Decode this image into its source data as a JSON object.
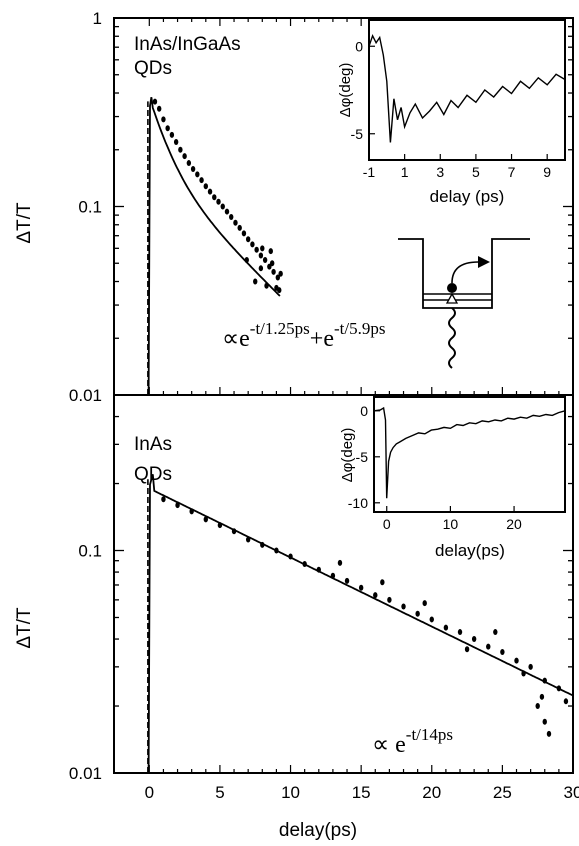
{
  "chart_data": [
    {
      "type": "scatter",
      "panel": "top",
      "scale": "log",
      "xlim": [
        -2.5,
        30
      ],
      "ylim": [
        0.01,
        1
      ],
      "ylabel": "ΔT/T",
      "y_ticks": [
        {
          "v": 1,
          "label": "1"
        },
        {
          "v": 0.1,
          "label": "0.1"
        },
        {
          "v": 0.01,
          "label": "0.01"
        }
      ],
      "sample_label": [
        "InAs/InGaAs",
        "QDs"
      ],
      "fit_text": {
        "prefix": "∝e",
        "exp1": "-t/1.25ps",
        "plus": "+e",
        "exp2": "-t/5.9ps"
      },
      "fit": {
        "peak_x": 0.15,
        "peak_y": 0.38,
        "a1": 0.22,
        "tau1_ps": 1.25,
        "a2": 0.16,
        "tau2_ps": 5.9,
        "x_end": 9.3
      },
      "series": [
        {
          "values": [
            [
              0.4,
              0.36
            ],
            [
              0.7,
              0.33
            ],
            [
              1.0,
              0.29
            ],
            [
              1.3,
              0.26
            ],
            [
              1.6,
              0.24
            ],
            [
              1.9,
              0.22
            ],
            [
              2.2,
              0.2
            ],
            [
              2.5,
              0.185
            ],
            [
              2.8,
              0.17
            ],
            [
              3.1,
              0.158
            ],
            [
              3.4,
              0.148
            ],
            [
              3.7,
              0.138
            ],
            [
              4.0,
              0.128
            ],
            [
              4.3,
              0.12
            ],
            [
              4.6,
              0.112
            ],
            [
              4.9,
              0.106
            ],
            [
              5.2,
              0.1
            ],
            [
              5.5,
              0.094
            ],
            [
              5.8,
              0.088
            ],
            [
              6.1,
              0.082
            ],
            [
              6.4,
              0.077
            ],
            [
              6.7,
              0.072
            ],
            [
              7.0,
              0.067
            ],
            [
              7.3,
              0.063
            ],
            [
              7.6,
              0.059
            ],
            [
              7.9,
              0.055
            ],
            [
              8.2,
              0.052
            ],
            [
              8.5,
              0.048
            ],
            [
              8.8,
              0.045
            ],
            [
              9.1,
              0.042
            ],
            [
              7.5,
              0.04
            ],
            [
              7.9,
              0.047
            ],
            [
              8.3,
              0.038
            ],
            [
              8.7,
              0.05
            ],
            [
              9.0,
              0.037
            ],
            [
              9.3,
              0.044
            ],
            [
              6.9,
              0.052
            ],
            [
              8.0,
              0.06
            ],
            [
              8.6,
              0.058
            ],
            [
              9.2,
              0.036
            ]
          ]
        }
      ],
      "inset": {
        "ylabel": "Δφ(deg)",
        "xlabel": "delay (ps)",
        "xlim": [
          -1,
          10
        ],
        "ylim": [
          -6.5,
          1.5
        ],
        "x_ticks": [
          -1,
          1,
          3,
          5,
          7,
          9
        ],
        "y_ticks": [
          0,
          -5
        ],
        "trace": [
          [
            -1,
            0
          ],
          [
            -0.8,
            0.6
          ],
          [
            -0.6,
            0.2
          ],
          [
            -0.4,
            0.5
          ],
          [
            -0.2,
            -0.5
          ],
          [
            0,
            -2
          ],
          [
            0.2,
            -5.5
          ],
          [
            0.4,
            -3
          ],
          [
            0.6,
            -4.2
          ],
          [
            0.8,
            -3.5
          ],
          [
            1,
            -4.6
          ],
          [
            1.3,
            -3.8
          ],
          [
            1.6,
            -3.3
          ],
          [
            2,
            -4.1
          ],
          [
            2.4,
            -3.7
          ],
          [
            2.8,
            -3.2
          ],
          [
            3.2,
            -3.9
          ],
          [
            3.6,
            -3.1
          ],
          [
            4,
            -3.5
          ],
          [
            4.5,
            -2.8
          ],
          [
            5,
            -3.2
          ],
          [
            5.5,
            -2.5
          ],
          [
            6,
            -2.9
          ],
          [
            6.5,
            -2.3
          ],
          [
            7,
            -2.7
          ],
          [
            7.5,
            -2.0
          ],
          [
            8,
            -2.4
          ],
          [
            8.5,
            -1.8
          ],
          [
            9,
            -2.2
          ],
          [
            9.5,
            -1.6
          ],
          [
            10,
            -1.9
          ]
        ]
      },
      "energy_diagram": true
    },
    {
      "type": "scatter",
      "panel": "bottom",
      "scale": "log",
      "xlim": [
        -2.5,
        30
      ],
      "ylim": [
        0.01,
        0.5
      ],
      "xlabel": "delay(ps)",
      "ylabel": "ΔT/T",
      "x_ticks": [
        0,
        5,
        10,
        15,
        20,
        25,
        30
      ],
      "y_ticks": [
        {
          "v": 0.1,
          "label": "0.1"
        },
        {
          "v": 0.01,
          "label": "0.01"
        }
      ],
      "sample_label": [
        "InAs",
        "QDs"
      ],
      "fit_text": {
        "prefix": "∝ e",
        "exp1": "-t/14ps"
      },
      "fit": {
        "peak_x": 0.25,
        "peak_y": 0.22,
        "a": 0.19,
        "tau_ps": 14,
        "x_end": 30
      },
      "series": [
        {
          "values": [
            [
              1,
              0.17
            ],
            [
              2,
              0.16
            ],
            [
              3,
              0.15
            ],
            [
              4,
              0.138
            ],
            [
              5,
              0.13
            ],
            [
              6,
              0.122
            ],
            [
              7,
              0.112
            ],
            [
              8,
              0.106
            ],
            [
              9,
              0.1
            ],
            [
              10,
              0.094
            ],
            [
              11,
              0.087
            ],
            [
              12,
              0.082
            ],
            [
              13,
              0.077
            ],
            [
              14,
              0.073
            ],
            [
              15,
              0.068
            ],
            [
              16,
              0.063
            ],
            [
              17,
              0.06
            ],
            [
              18,
              0.056
            ],
            [
              19,
              0.052
            ],
            [
              20,
              0.049
            ],
            [
              21,
              0.045
            ],
            [
              22,
              0.043
            ],
            [
              23,
              0.04
            ],
            [
              24,
              0.037
            ],
            [
              25,
              0.035
            ],
            [
              26,
              0.032
            ],
            [
              27,
              0.03
            ],
            [
              28,
              0.026
            ],
            [
              29,
              0.024
            ],
            [
              27.5,
              0.02
            ],
            [
              28,
              0.017
            ],
            [
              28.3,
              0.015
            ],
            [
              27.8,
              0.022
            ],
            [
              22.5,
              0.036
            ],
            [
              16.5,
              0.072
            ],
            [
              19.5,
              0.058
            ],
            [
              13.5,
              0.088
            ],
            [
              24.5,
              0.043
            ],
            [
              26.5,
              0.028
            ],
            [
              29.5,
              0.021
            ]
          ]
        }
      ],
      "inset": {
        "ylabel": "Δφ(deg)",
        "xlabel": "delay(ps)",
        "xlim": [
          -2,
          28
        ],
        "ylim": [
          -11,
          1.5
        ],
        "x_ticks": [
          0,
          10,
          20
        ],
        "y_ticks": [
          0,
          -5,
          -10
        ],
        "trace": [
          [
            -2,
            0
          ],
          [
            -1,
            0.1
          ],
          [
            -0.5,
            0.3
          ],
          [
            -0.2,
            -1
          ],
          [
            0,
            -9.5
          ],
          [
            0.3,
            -5.5
          ],
          [
            0.6,
            -4.5
          ],
          [
            1,
            -4
          ],
          [
            1.5,
            -3.6
          ],
          [
            2,
            -3.4
          ],
          [
            3,
            -3
          ],
          [
            4,
            -2.7
          ],
          [
            5,
            -2.4
          ],
          [
            6,
            -2.5
          ],
          [
            7,
            -2.1
          ],
          [
            8,
            -2
          ],
          [
            9,
            -1.8
          ],
          [
            10,
            -1.9
          ],
          [
            11,
            -1.5
          ],
          [
            12,
            -1.6
          ],
          [
            13,
            -1.3
          ],
          [
            14,
            -1.4
          ],
          [
            15,
            -1.1
          ],
          [
            16,
            -1.2
          ],
          [
            17,
            -1.0
          ],
          [
            18,
            -1.1
          ],
          [
            19,
            -0.8
          ],
          [
            20,
            -0.9
          ],
          [
            21,
            -0.7
          ],
          [
            22,
            -0.8
          ],
          [
            23,
            -0.5
          ],
          [
            24,
            -0.6
          ],
          [
            25,
            -0.4
          ],
          [
            26,
            -0.5
          ],
          [
            27,
            -0.2
          ],
          [
            28,
            0
          ]
        ]
      }
    }
  ]
}
